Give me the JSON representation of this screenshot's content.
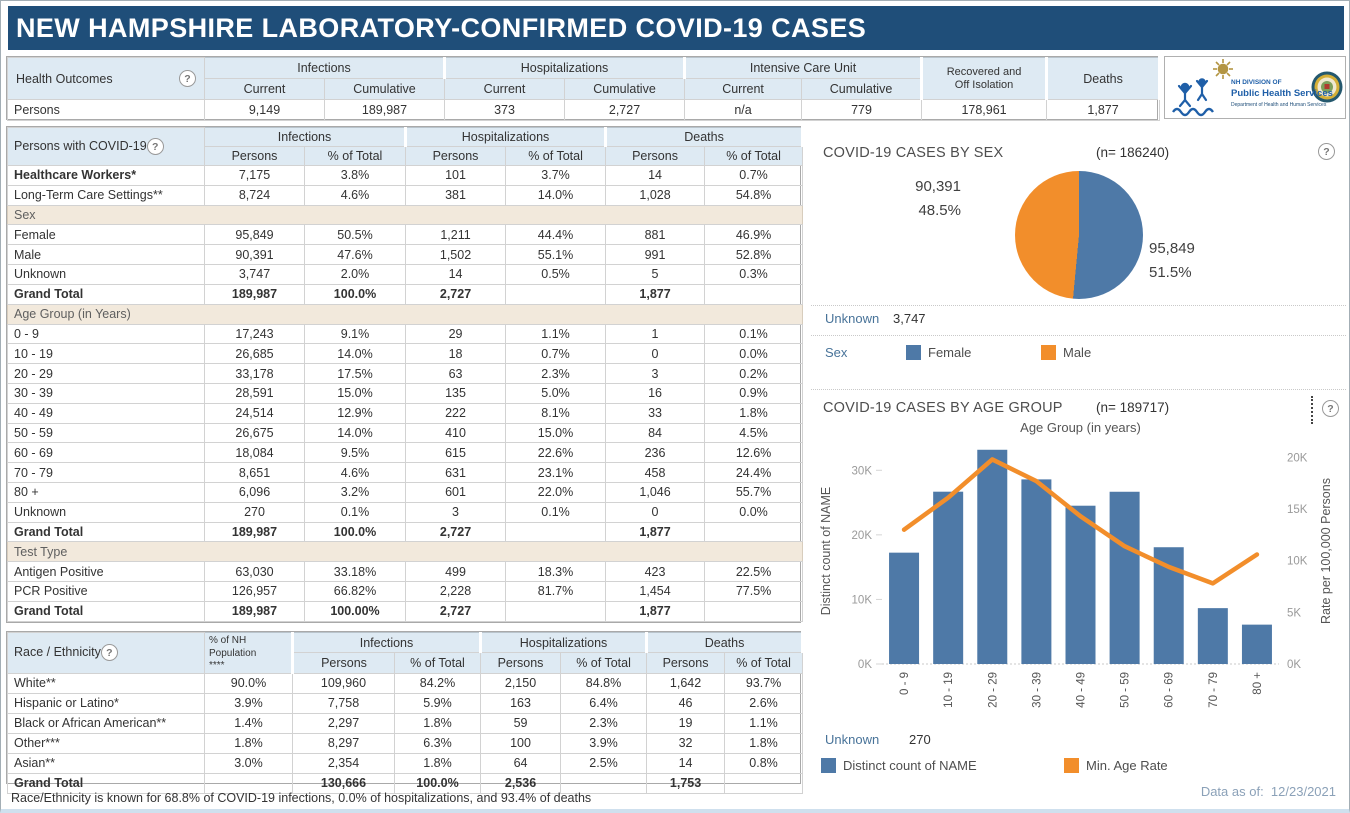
{
  "window": {
    "title": "NEW HAMPSHIRE LABORATORY-CONFIRMED COVID-19 CASES"
  },
  "icons": {
    "help": "?"
  },
  "colors": {
    "title_bar": "#1F4E79",
    "table_header_bg": "#DEEAF3",
    "section_bg": "#F2E9DC",
    "bar_blue": "#4E79A7",
    "line_orange": "#F28E2B"
  },
  "health_outcomes": {
    "label": "Health Outcomes",
    "col_groups": [
      "Infections",
      "Hospitalizations",
      "Intensive Care Unit"
    ],
    "subheaders": [
      "Current",
      "Cumulative"
    ],
    "recovered_header": "Recovered and Off Isolation",
    "deaths_header": "Deaths",
    "row": {
      "label": "Persons",
      "values": [
        "9,149",
        "189,987",
        "373",
        "2,727",
        "n/a",
        "779",
        "178,961",
        "1,877"
      ]
    }
  },
  "logo": {
    "org_line1": "NH DIVISION OF",
    "org_line2": "Public Health Services",
    "org_line3": "Department of Health and Human Services"
  },
  "persons_table": {
    "label": "Persons with COVID-19",
    "col_groups": [
      "Infections",
      "Hospitalizations",
      "Deaths"
    ],
    "subheaders": [
      "Persons",
      "% of Total"
    ],
    "rows": [
      {
        "label": "Healthcare Workers*",
        "style": "boldlab",
        "values": [
          "7,175",
          "3.8%",
          "101",
          "3.7%",
          "14",
          "0.7%"
        ]
      },
      {
        "label": "Long-Term Care Settings**",
        "style": "plain",
        "values": [
          "8,724",
          "4.6%",
          "381",
          "14.0%",
          "1,028",
          "54.8%"
        ]
      },
      {
        "label": "Sex",
        "style": "section",
        "values": []
      },
      {
        "label": "Female",
        "style": "plain",
        "values": [
          "95,849",
          "50.5%",
          "1,211",
          "44.4%",
          "881",
          "46.9%"
        ]
      },
      {
        "label": "Male",
        "style": "plain",
        "values": [
          "90,391",
          "47.6%",
          "1,502",
          "55.1%",
          "991",
          "52.8%"
        ]
      },
      {
        "label": "Unknown",
        "style": "plain",
        "values": [
          "3,747",
          "2.0%",
          "14",
          "0.5%",
          "5",
          "0.3%"
        ]
      },
      {
        "label": "Grand Total",
        "style": "total",
        "values": [
          "189,987",
          "100.0%",
          "2,727",
          "",
          "1,877",
          ""
        ]
      },
      {
        "label": "Age Group (in Years)",
        "style": "section",
        "values": []
      },
      {
        "label": "0 - 9",
        "style": "plain",
        "values": [
          "17,243",
          "9.1%",
          "29",
          "1.1%",
          "1",
          "0.1%"
        ]
      },
      {
        "label": "10 - 19",
        "style": "plain",
        "values": [
          "26,685",
          "14.0%",
          "18",
          "0.7%",
          "0",
          "0.0%"
        ]
      },
      {
        "label": "20 - 29",
        "style": "plain",
        "values": [
          "33,178",
          "17.5%",
          "63",
          "2.3%",
          "3",
          "0.2%"
        ]
      },
      {
        "label": "30 - 39",
        "style": "plain",
        "values": [
          "28,591",
          "15.0%",
          "135",
          "5.0%",
          "16",
          "0.9%"
        ]
      },
      {
        "label": "40 - 49",
        "style": "plain",
        "values": [
          "24,514",
          "12.9%",
          "222",
          "8.1%",
          "33",
          "1.8%"
        ]
      },
      {
        "label": "50 - 59",
        "style": "plain",
        "values": [
          "26,675",
          "14.0%",
          "410",
          "15.0%",
          "84",
          "4.5%"
        ]
      },
      {
        "label": "60 - 69",
        "style": "plain",
        "values": [
          "18,084",
          "9.5%",
          "615",
          "22.6%",
          "236",
          "12.6%"
        ]
      },
      {
        "label": "70 - 79",
        "style": "plain",
        "values": [
          "8,651",
          "4.6%",
          "631",
          "23.1%",
          "458",
          "24.4%"
        ]
      },
      {
        "label": "80 +",
        "style": "plain",
        "values": [
          "6,096",
          "3.2%",
          "601",
          "22.0%",
          "1,046",
          "55.7%"
        ]
      },
      {
        "label": "Unknown",
        "style": "plain",
        "values": [
          "270",
          "0.1%",
          "3",
          "0.1%",
          "0",
          "0.0%"
        ]
      },
      {
        "label": "Grand Total",
        "style": "total",
        "values": [
          "189,987",
          "100.0%",
          "2,727",
          "",
          "1,877",
          ""
        ]
      },
      {
        "label": "Test Type",
        "style": "section",
        "values": []
      },
      {
        "label": "Antigen Positive",
        "style": "plain",
        "values": [
          "63,030",
          "33.18%",
          "499",
          "18.3%",
          "423",
          "22.5%"
        ]
      },
      {
        "label": "PCR Positive",
        "style": "plain",
        "values": [
          "126,957",
          "66.82%",
          "2,228",
          "81.7%",
          "1,454",
          "77.5%"
        ]
      },
      {
        "label": "Grand Total",
        "style": "total",
        "values": [
          "189,987",
          "100.00%",
          "2,727",
          "",
          "1,877",
          ""
        ]
      }
    ]
  },
  "race_table": {
    "label": "Race / Ethnicity",
    "pop_header_lines": [
      "% of NH",
      "Population",
      "****"
    ],
    "col_groups": [
      "Infections",
      "Hospitalizations",
      "Deaths"
    ],
    "subheaders": [
      "Persons",
      "% of Total"
    ],
    "rows": [
      {
        "label": "White**",
        "style": "plain",
        "values": [
          "90.0%",
          "109,960",
          "84.2%",
          "2,150",
          "84.8%",
          "1,642",
          "93.7%"
        ]
      },
      {
        "label": "Hispanic or Latino*",
        "style": "plain",
        "values": [
          "3.9%",
          "7,758",
          "5.9%",
          "163",
          "6.4%",
          "46",
          "2.6%"
        ]
      },
      {
        "label": "Black or African American**",
        "style": "plain",
        "values": [
          "1.4%",
          "2,297",
          "1.8%",
          "59",
          "2.3%",
          "19",
          "1.1%"
        ]
      },
      {
        "label": "Other***",
        "style": "plain",
        "values": [
          "1.8%",
          "8,297",
          "6.3%",
          "100",
          "3.9%",
          "32",
          "1.8%"
        ]
      },
      {
        "label": "Asian**",
        "style": "plain",
        "values": [
          "3.0%",
          "2,354",
          "1.8%",
          "64",
          "2.5%",
          "14",
          "0.8%"
        ]
      },
      {
        "label": "Grand Total",
        "style": "total",
        "values": [
          "",
          "130,666",
          "100.0%",
          "2,536",
          "",
          "1,753",
          ""
        ]
      }
    ],
    "note": "Race/Ethnicity is known for 68.8% of COVID-19 infections, 0.0% of hospitalizations, and 93.4% of deaths"
  },
  "chart_data": [
    {
      "id": "cases-by-sex",
      "type": "pie",
      "title": "COVID-19 CASES BY SEX",
      "n_label": "(n= 186240)",
      "slices": [
        {
          "label": "Female",
          "value": 95849,
          "pct": 51.5,
          "color": "#4E79A7",
          "annotation_lines": [
            "95,849",
            "51.5%"
          ]
        },
        {
          "label": "Male",
          "value": 90391,
          "pct": 48.5,
          "color": "#F28E2B",
          "annotation_lines": [
            "90,391",
            "48.5%"
          ]
        }
      ],
      "unknown": {
        "label": "Unknown",
        "value": "3,747"
      },
      "legend_title": "Sex",
      "legend_position": "bottom"
    },
    {
      "id": "cases-by-age-group",
      "type": "bar+line",
      "title": "COVID-19 CASES BY AGE GROUP",
      "n_label": "(n= 189717)",
      "axis_title": "Age Group (in years)",
      "categories": [
        "0 - 9",
        "10 - 19",
        "20 - 29",
        "30 - 39",
        "40 - 49",
        "50 - 59",
        "60 - 69",
        "70 - 79",
        "80 +"
      ],
      "series": [
        {
          "name": "Distinct count of NAME",
          "type": "bar",
          "color": "#4E79A7",
          "values": [
            17243,
            26685,
            33178,
            28591,
            24514,
            26675,
            18084,
            8651,
            6096
          ]
        },
        {
          "name": "Min. Age Rate",
          "type": "line",
          "color": "#F28E2B",
          "values": [
            13000,
            16100,
            19800,
            17700,
            14300,
            11400,
            9400,
            7800,
            10600
          ]
        }
      ],
      "left_axis": {
        "label": "Distinct count of NAME",
        "ticks": [
          "0K",
          "10K",
          "20K",
          "30K"
        ],
        "tick_values": [
          0,
          10000,
          20000,
          30000
        ],
        "max": 35000
      },
      "right_axis": {
        "label": "Rate per 100,000 Persons",
        "ticks": [
          "0K",
          "5K",
          "10K",
          "15K",
          "20K"
        ],
        "tick_values": [
          0,
          5000,
          10000,
          15000,
          20000
        ],
        "max": 21875
      },
      "grid": false,
      "unknown": {
        "label": "Unknown",
        "value": "270"
      },
      "footer": {
        "label": "Data as of:",
        "value": "12/23/2021"
      }
    }
  ]
}
